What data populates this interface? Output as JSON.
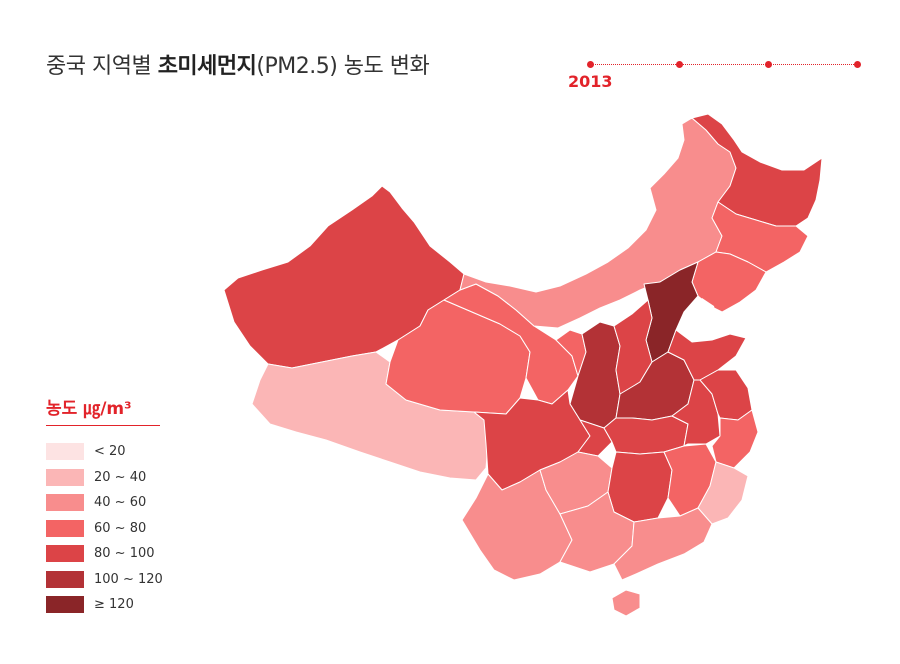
{
  "title": {
    "prefix": "중국 지역별 ",
    "bold": "초미세먼지",
    "suffix": "(PM2.5) 농도 변화"
  },
  "timeline": {
    "year": "2013",
    "dot_count": 4,
    "accent": "#e2232a"
  },
  "legend": {
    "title": "농도 ㎍/m³",
    "items": [
      {
        "label": "< 20",
        "color": "#fde3e3"
      },
      {
        "label": "20 ~ 40",
        "color": "#fbb6b6"
      },
      {
        "label": "40 ~ 60",
        "color": "#f88d8d"
      },
      {
        "label": "60 ~ 80",
        "color": "#f36464"
      },
      {
        "label": "80 ~ 100",
        "color": "#dc4447"
      },
      {
        "label": "100 ~ 120",
        "color": "#b33236"
      },
      {
        "label": "≥ 120",
        "color": "#8a2528"
      }
    ]
  },
  "regions": [
    {
      "name": "xinjiang",
      "level": 4
    },
    {
      "name": "tibet",
      "level": 1
    },
    {
      "name": "qinghai",
      "level": 3
    },
    {
      "name": "gansu",
      "level": 3
    },
    {
      "name": "inner-mongolia",
      "level": 2
    },
    {
      "name": "heilongjiang",
      "level": 4
    },
    {
      "name": "jilin",
      "level": 3
    },
    {
      "name": "liaoning",
      "level": 3
    },
    {
      "name": "hebei",
      "level": 6
    },
    {
      "name": "ningxia",
      "level": 3
    },
    {
      "name": "shaanxi",
      "level": 5
    },
    {
      "name": "shanxi",
      "level": 4
    },
    {
      "name": "henan",
      "level": 5
    },
    {
      "name": "shandong",
      "level": 4
    },
    {
      "name": "sichuan",
      "level": 4
    },
    {
      "name": "chongqing",
      "level": 4
    },
    {
      "name": "hubei",
      "level": 4
    },
    {
      "name": "anhui",
      "level": 4
    },
    {
      "name": "jiangsu",
      "level": 4
    },
    {
      "name": "zhejiang",
      "level": 3
    },
    {
      "name": "yunnan",
      "level": 2
    },
    {
      "name": "guizhou",
      "level": 2
    },
    {
      "name": "hunan",
      "level": 4
    },
    {
      "name": "jiangxi",
      "level": 3
    },
    {
      "name": "fujian",
      "level": 1
    },
    {
      "name": "guangxi",
      "level": 2
    },
    {
      "name": "guangdong",
      "level": 2
    },
    {
      "name": "hainan",
      "level": 2
    }
  ]
}
